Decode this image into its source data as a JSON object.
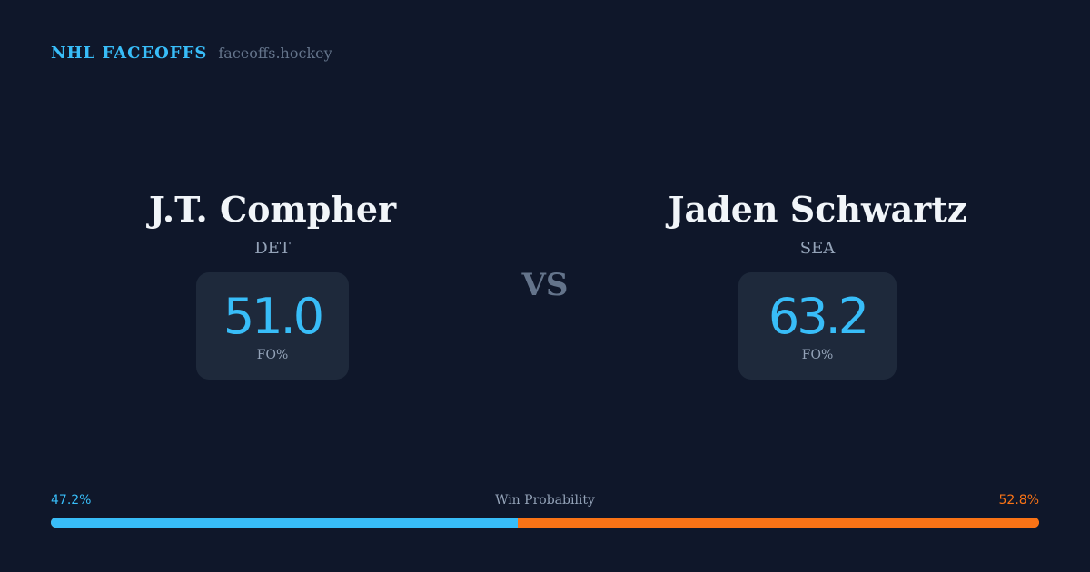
{
  "brand": {
    "title": "NHL FACEOFFS",
    "site": "faceoffs.hockey"
  },
  "players": [
    {
      "name": "J.T. Compher",
      "team": "DET",
      "fo_pct": "51.0",
      "fo_label": "FO%"
    },
    {
      "name": "Jaden Schwartz",
      "team": "SEA",
      "fo_pct": "63.2",
      "fo_label": "FO%"
    }
  ],
  "vs": "VS",
  "win_probability": {
    "label": "Win Probability",
    "left": "47.2%",
    "right": "52.8%",
    "left_fraction": 0.472,
    "colors": {
      "left": "#38bdf8",
      "right": "#f97316"
    }
  }
}
